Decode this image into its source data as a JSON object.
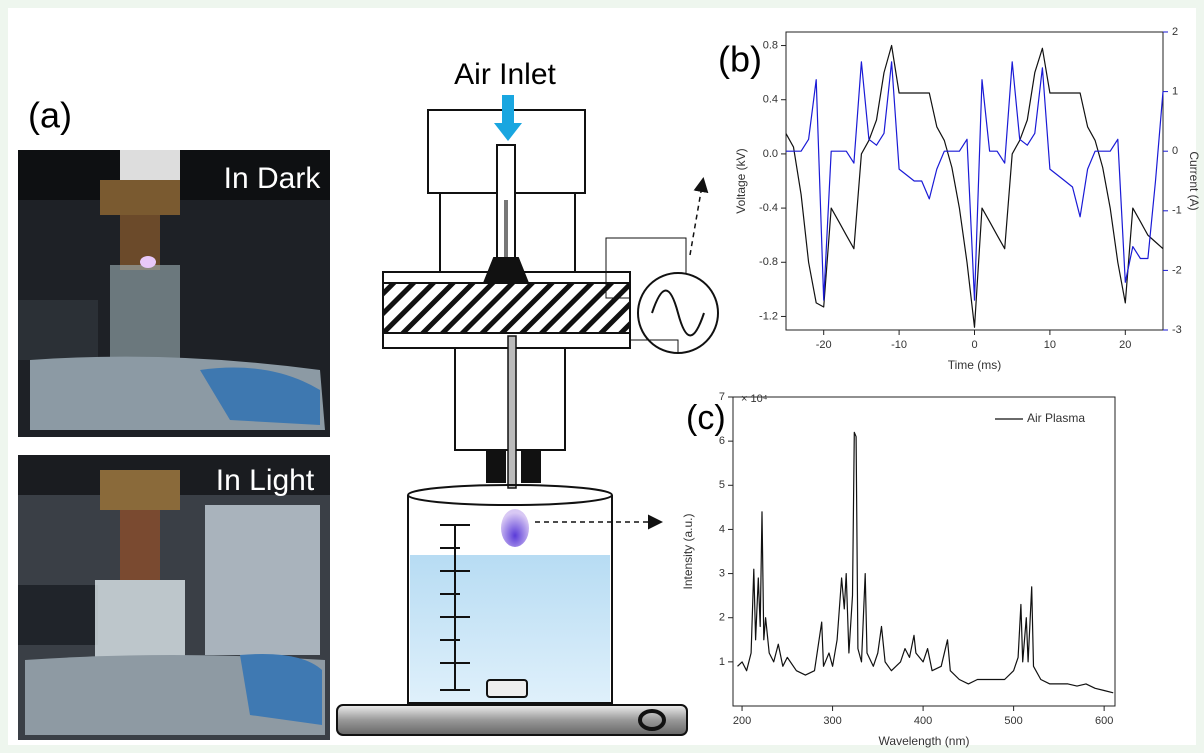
{
  "figure": {
    "panel_a": "(a)",
    "photo_labels": [
      "In Dark",
      "In Light"
    ],
    "diagram_label": "Air Inlet"
  },
  "chart_data": [
    {
      "type": "line",
      "panel": "(b)",
      "xlabel": "Time (ms)",
      "ylabel": "Voltage (kV)",
      "y2label": "Current (A)",
      "x": [
        -25,
        -24,
        -23,
        -22,
        -21,
        -20,
        -19,
        -18,
        -17,
        -16,
        -15,
        -14,
        -13,
        -12,
        -11,
        -10,
        -9,
        -8,
        -7,
        -6,
        -5,
        -4,
        -3,
        -2,
        -1,
        0,
        1,
        2,
        3,
        4,
        5,
        6,
        7,
        8,
        9,
        10,
        11,
        12,
        13,
        14,
        15,
        16,
        17,
        18,
        19,
        20,
        21,
        22,
        23,
        24,
        25
      ],
      "series": [
        {
          "color": "#111111",
          "values": [
            0.15,
            0.05,
            -0.3,
            -0.8,
            -1.1,
            -1.13,
            -0.4,
            -0.5,
            -0.6,
            -0.7,
            0.0,
            0.1,
            0.25,
            0.6,
            0.8,
            0.45,
            0.45,
            0.45,
            0.45,
            0.45,
            0.2,
            0.1,
            -0.1,
            -0.4,
            -0.8,
            -1.28,
            -0.4,
            -0.5,
            -0.6,
            -0.7,
            0.0,
            0.1,
            0.25,
            0.6,
            0.78,
            0.45,
            0.45,
            0.45,
            0.45,
            0.45,
            0.2,
            0.1,
            -0.1,
            -0.4,
            -0.8,
            -1.1,
            -0.4,
            -0.5,
            -0.6,
            -0.65,
            -0.7
          ]
        },
        {
          "color": "#1a1ad6",
          "axis": "y2",
          "values": [
            0,
            0,
            0,
            0.2,
            1.2,
            -2.5,
            0,
            0,
            0,
            -0.2,
            1.5,
            0.2,
            0.1,
            0.3,
            1.5,
            -0.3,
            -0.4,
            -0.5,
            -0.5,
            -0.8,
            -0.3,
            0,
            0,
            0,
            0.2,
            -2.5,
            1.2,
            0,
            0,
            -0.2,
            1.5,
            0.2,
            0.1,
            0.3,
            1.4,
            -0.3,
            -0.4,
            -0.5,
            -0.6,
            -1.1,
            -0.3,
            0,
            0,
            0,
            0.2,
            -2.2,
            -1.6,
            -1.8,
            -1.8,
            -0.5,
            1.0
          ]
        }
      ],
      "xlim": [
        -25,
        25
      ],
      "xticks": [
        -20,
        -10,
        {
          "value": 0,
          "label": "0"
        },
        10,
        20
      ],
      "ylim": [
        -1.3,
        0.9
      ],
      "yticks": [
        -1.2,
        -0.8,
        -0.4,
        {
          "value": 0,
          "label": "0.0"
        },
        0.4,
        0.8
      ],
      "y2lim": [
        -3,
        2
      ],
      "y2ticks": [
        -3,
        -2,
        -1,
        0,
        1,
        2
      ],
      "y2color": "#1a1ad6"
    },
    {
      "type": "line",
      "panel": "(c)",
      "xlabel": "Wavelength (nm)",
      "ylabel": "Intensity (a.u.)",
      "multiplier": "× 10⁴",
      "x": [
        195,
        200,
        205,
        210,
        213,
        215,
        218,
        220,
        222,
        224,
        226,
        230,
        235,
        240,
        245,
        250,
        260,
        270,
        280,
        288,
        290,
        296,
        300,
        305,
        310,
        313,
        315,
        318,
        322,
        324,
        326,
        328,
        332,
        336,
        338,
        345,
        350,
        354,
        358,
        365,
        375,
        380,
        385,
        390,
        392,
        400,
        405,
        410,
        420,
        427,
        430,
        440,
        450,
        460,
        470,
        480,
        490,
        500,
        505,
        508,
        510,
        514,
        516,
        520,
        522,
        530,
        540,
        550,
        560,
        570,
        580,
        590,
        600,
        610
      ],
      "series": [
        {
          "name": "Air Plasma",
          "color": "#111111",
          "values": [
            0.9,
            1.0,
            0.8,
            1.2,
            3.1,
            1.5,
            2.9,
            1.8,
            4.4,
            1.5,
            2.0,
            1.2,
            1.0,
            1.4,
            0.9,
            1.1,
            0.8,
            0.7,
            0.8,
            1.9,
            0.9,
            1.2,
            0.9,
            1.5,
            2.9,
            2.2,
            3.0,
            1.2,
            2.5,
            6.2,
            6.1,
            1.3,
            1.0,
            3.0,
            1.2,
            0.9,
            1.2,
            1.8,
            1.0,
            0.8,
            1.0,
            1.3,
            1.1,
            1.6,
            1.2,
            1.0,
            1.3,
            0.8,
            0.9,
            1.5,
            0.8,
            0.6,
            0.5,
            0.6,
            0.6,
            0.6,
            0.6,
            0.8,
            1.1,
            2.3,
            1.0,
            2.0,
            1.0,
            2.7,
            0.9,
            0.6,
            0.5,
            0.5,
            0.5,
            0.45,
            0.5,
            0.4,
            0.35,
            0.3
          ]
        }
      ],
      "xlim": [
        190,
        612
      ],
      "xticks": [
        200,
        300,
        400,
        500,
        600
      ],
      "ylim": [
        0,
        7
      ],
      "yticks": [
        1,
        2,
        3,
        4,
        5,
        6,
        7
      ]
    }
  ]
}
